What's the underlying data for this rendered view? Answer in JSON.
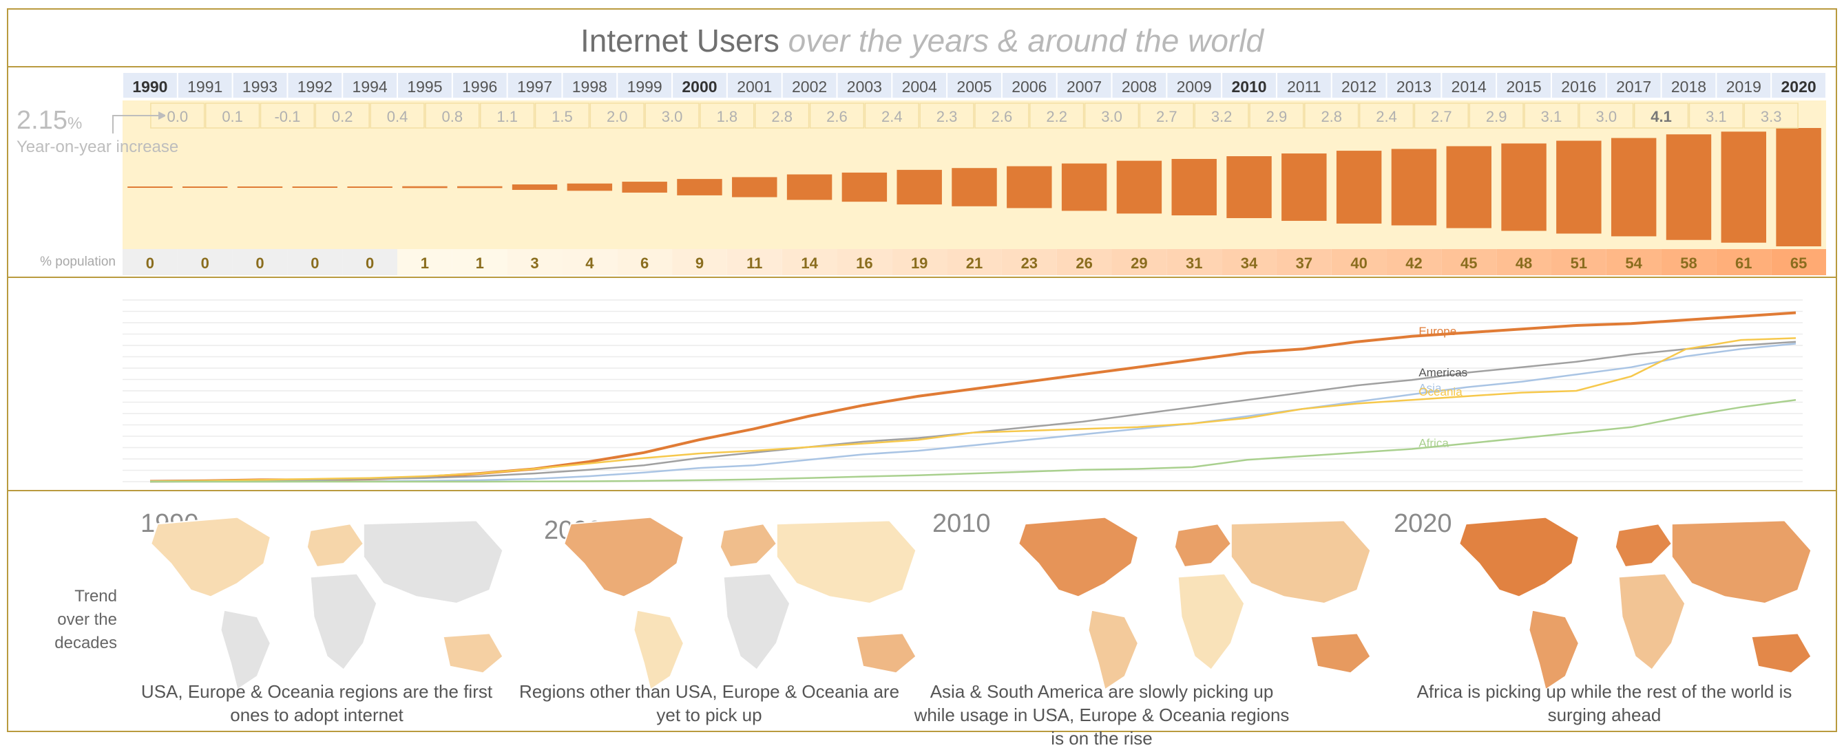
{
  "header": {
    "title_main": "Internet Users",
    "title_sub": "over the years & around the world"
  },
  "yoy": {
    "value": "2.15",
    "unit": "%",
    "caption": "Year-on-year increase"
  },
  "population_label": "% population",
  "trend_label": [
    "Trend",
    "over the",
    "decades"
  ],
  "chart_data": [
    {
      "type": "bar",
      "categories": [
        "1990",
        "1991",
        "1993",
        "1992",
        "1994",
        "1995",
        "1996",
        "1997",
        "1998",
        "1999",
        "2000",
        "2001",
        "2002",
        "2003",
        "2004",
        "2005",
        "2006",
        "2007",
        "2008",
        "2009",
        "2010",
        "2011",
        "2012",
        "2013",
        "2014",
        "2015",
        "2016",
        "2017",
        "2018",
        "2019",
        "2020"
      ],
      "bold_categories": [
        "1990",
        "2000",
        "2010",
        "2020"
      ],
      "yoy_increase": [
        "0.0",
        "0.1",
        "-0.1",
        "0.2",
        "0.4",
        "0.8",
        "1.1",
        "1.5",
        "2.0",
        "3.0",
        "1.8",
        "2.8",
        "2.6",
        "2.4",
        "2.3",
        "2.6",
        "2.2",
        "3.0",
        "2.7",
        "3.2",
        "2.9",
        "2.8",
        "2.4",
        "2.7",
        "2.9",
        "3.1",
        "3.0",
        "4.1",
        "3.1",
        "3.3"
      ],
      "bold_yoy": [
        "4.1"
      ],
      "percent_population": [
        0,
        0,
        0,
        0,
        0,
        1,
        1,
        3,
        4,
        6,
        9,
        11,
        14,
        16,
        19,
        21,
        23,
        26,
        29,
        31,
        34,
        37,
        40,
        42,
        45,
        48,
        51,
        54,
        58,
        61,
        65
      ],
      "population_row_labels": [
        "0",
        "0",
        "0",
        "0",
        "0",
        "1",
        "1",
        "3",
        "4",
        "6",
        "9",
        "11",
        "14",
        "16",
        "19",
        "21",
        "23",
        "26",
        "29",
        "31",
        "34",
        "37",
        "40",
        "42",
        "45",
        "48",
        "51",
        "54",
        "58",
        "61",
        "65"
      ]
    },
    {
      "type": "line",
      "x": [
        1990,
        1991,
        1992,
        1993,
        1994,
        1995,
        1996,
        1997,
        1998,
        1999,
        2000,
        2001,
        2002,
        2003,
        2004,
        2005,
        2006,
        2007,
        2008,
        2009,
        2010,
        2011,
        2012,
        2013,
        2014,
        2015,
        2016,
        2017,
        2018,
        2019,
        2020
      ],
      "ylim": [
        0,
        100
      ],
      "grid": true,
      "series": [
        {
          "name": "Europe",
          "color": "#e07b35",
          "values": [
            0.2,
            0.5,
            1,
            1,
            1.5,
            2.5,
            4.5,
            7,
            11,
            16,
            23,
            29,
            36,
            42,
            47,
            51,
            55,
            59,
            63,
            67,
            71,
            73,
            77,
            80,
            82,
            84,
            86,
            87,
            89,
            91,
            93
          ]
        },
        {
          "name": "Americas",
          "color": "#a0a0a0",
          "values": [
            0.3,
            0.5,
            0.8,
            1,
            1.5,
            2,
            3,
            4.5,
            6.5,
            9,
            13,
            16,
            19,
            22,
            24,
            27,
            30,
            33,
            37,
            41,
            45,
            49,
            53,
            56,
            60,
            63,
            66,
            70,
            73,
            75,
            77
          ]
        },
        {
          "name": "Asia",
          "color": "#a9c4e4",
          "values": [
            0,
            0,
            0,
            0.1,
            0.2,
            0.4,
            0.8,
            1.5,
            3,
            5,
            7.5,
            9,
            12,
            15,
            17,
            20,
            23,
            26,
            29,
            32,
            36,
            40,
            44,
            48,
            52,
            55,
            59,
            63,
            69,
            73,
            76
          ]
        },
        {
          "name": "Oceania",
          "color": "#f6c84c",
          "values": [
            0.2,
            0.5,
            1,
            1.5,
            2,
            3,
            4.5,
            7,
            10,
            13,
            15.5,
            17,
            19,
            21,
            23,
            27,
            28,
            29,
            30,
            32,
            35,
            40,
            43,
            45,
            47,
            49,
            50,
            58,
            73,
            78,
            79
          ]
        },
        {
          "name": "Africa",
          "color": "#a9d08e",
          "values": [
            0,
            0,
            0,
            0,
            0,
            0,
            0,
            0.1,
            0.2,
            0.4,
            0.8,
            1.2,
            2,
            2.8,
            3.5,
            4.5,
            5.5,
            6.5,
            7,
            8,
            12,
            14,
            16,
            18,
            21,
            24,
            27,
            30,
            36,
            41,
            45
          ]
        }
      ]
    }
  ],
  "maps": [
    {
      "year": "1990",
      "caption": "USA, Europe & Oceania regions are the first ones to adopt internet",
      "levels": {
        "na": 0.15,
        "sa": 0,
        "eu": 0.2,
        "af": 0,
        "as": 0,
        "oc": 0.25
      }
    },
    {
      "year": "2000",
      "caption": "Regions other than USA, Europe & Oceania are yet to pick up",
      "levels": {
        "na": 0.55,
        "sa": 0.1,
        "eu": 0.4,
        "af": 0.02,
        "as": 0.08,
        "oc": 0.45
      }
    },
    {
      "year": "2010",
      "caption": "Asia & South America are slowly picking up while usage in USA, Europe & Oceania regions is on the rise",
      "levels": {
        "na": 0.75,
        "sa": 0.3,
        "eu": 0.65,
        "af": 0.1,
        "as": 0.3,
        "oc": 0.7
      }
    },
    {
      "year": "2020",
      "caption": "Africa is picking up while the rest of the world is surging ahead",
      "levels": {
        "na": 0.9,
        "sa": 0.65,
        "eu": 0.85,
        "af": 0.35,
        "as": 0.65,
        "oc": 0.85
      }
    }
  ]
}
